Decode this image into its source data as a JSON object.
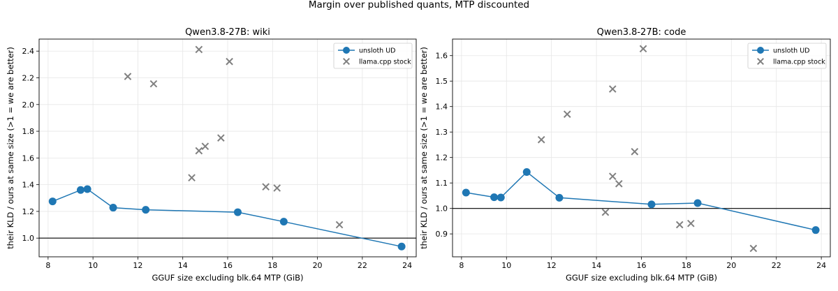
{
  "figure": {
    "suptitle": "Margin over published quants, MTP discounted"
  },
  "chart_data": [
    {
      "type": "scatter",
      "title": "Qwen3.8-27B: wiki",
      "xlabel": "GGUF size excluding blk.64 MTP (GiB)",
      "ylabel": "their KLD / ours at same size  (>1 = we are better)",
      "xlim": [
        7.6,
        24.4
      ],
      "ylim": [
        0.86,
        2.49
      ],
      "xticks": [
        8,
        10,
        12,
        14,
        16,
        18,
        20,
        22,
        24
      ],
      "yticks": [
        1.0,
        1.2,
        1.4,
        1.6,
        1.8,
        2.0,
        2.2,
        2.4
      ],
      "ytick_decimals": 1,
      "reference_line": 1.0,
      "grid": true,
      "legend": "top-right",
      "series": [
        {
          "name": "unsloth UD",
          "kind": "line-marker",
          "color": "#1f77b4",
          "x": [
            8.2,
            9.45,
            9.75,
            10.9,
            12.35,
            16.45,
            18.5,
            23.75
          ],
          "y": [
            1.275,
            1.36,
            1.367,
            1.228,
            1.212,
            1.194,
            1.123,
            0.937
          ]
        },
        {
          "name": "llama.cpp stock",
          "kind": "x-marker",
          "color": "#808080",
          "x": [
            11.55,
            12.7,
            14.4,
            14.72,
            14.72,
            15.0,
            15.7,
            16.08,
            17.7,
            18.2,
            20.98
          ],
          "y": [
            2.21,
            2.155,
            1.452,
            2.412,
            1.654,
            1.687,
            1.75,
            2.322,
            1.384,
            1.375,
            1.1
          ]
        }
      ]
    },
    {
      "type": "scatter",
      "title": "Qwen3.8-27B: code",
      "xlabel": "GGUF size excluding blk.64 MTP (GiB)",
      "ylabel": "their KLD / ours at same size  (>1 = we are better)",
      "xlim": [
        7.6,
        24.4
      ],
      "ylim": [
        0.81,
        1.665
      ],
      "xticks": [
        8,
        10,
        12,
        14,
        16,
        18,
        20,
        22,
        24
      ],
      "yticks": [
        0.9,
        1.0,
        1.1,
        1.2,
        1.3,
        1.4,
        1.5,
        1.6
      ],
      "ytick_decimals": 1,
      "reference_line": 1.0,
      "grid": true,
      "legend": "top-right",
      "series": [
        {
          "name": "unsloth UD",
          "kind": "line-marker",
          "color": "#1f77b4",
          "x": [
            8.2,
            9.45,
            9.75,
            10.9,
            12.35,
            16.45,
            18.5,
            23.75
          ],
          "y": [
            1.062,
            1.044,
            1.043,
            1.143,
            1.042,
            1.016,
            1.021,
            0.915
          ]
        },
        {
          "name": "llama.cpp stock",
          "kind": "x-marker",
          "color": "#808080",
          "x": [
            11.55,
            12.7,
            14.4,
            14.72,
            14.72,
            15.0,
            15.7,
            16.08,
            17.7,
            18.2,
            20.98
          ],
          "y": [
            1.27,
            1.37,
            0.985,
            1.469,
            1.126,
            1.097,
            1.223,
            1.627,
            0.936,
            0.941,
            0.843
          ]
        }
      ]
    }
  ]
}
